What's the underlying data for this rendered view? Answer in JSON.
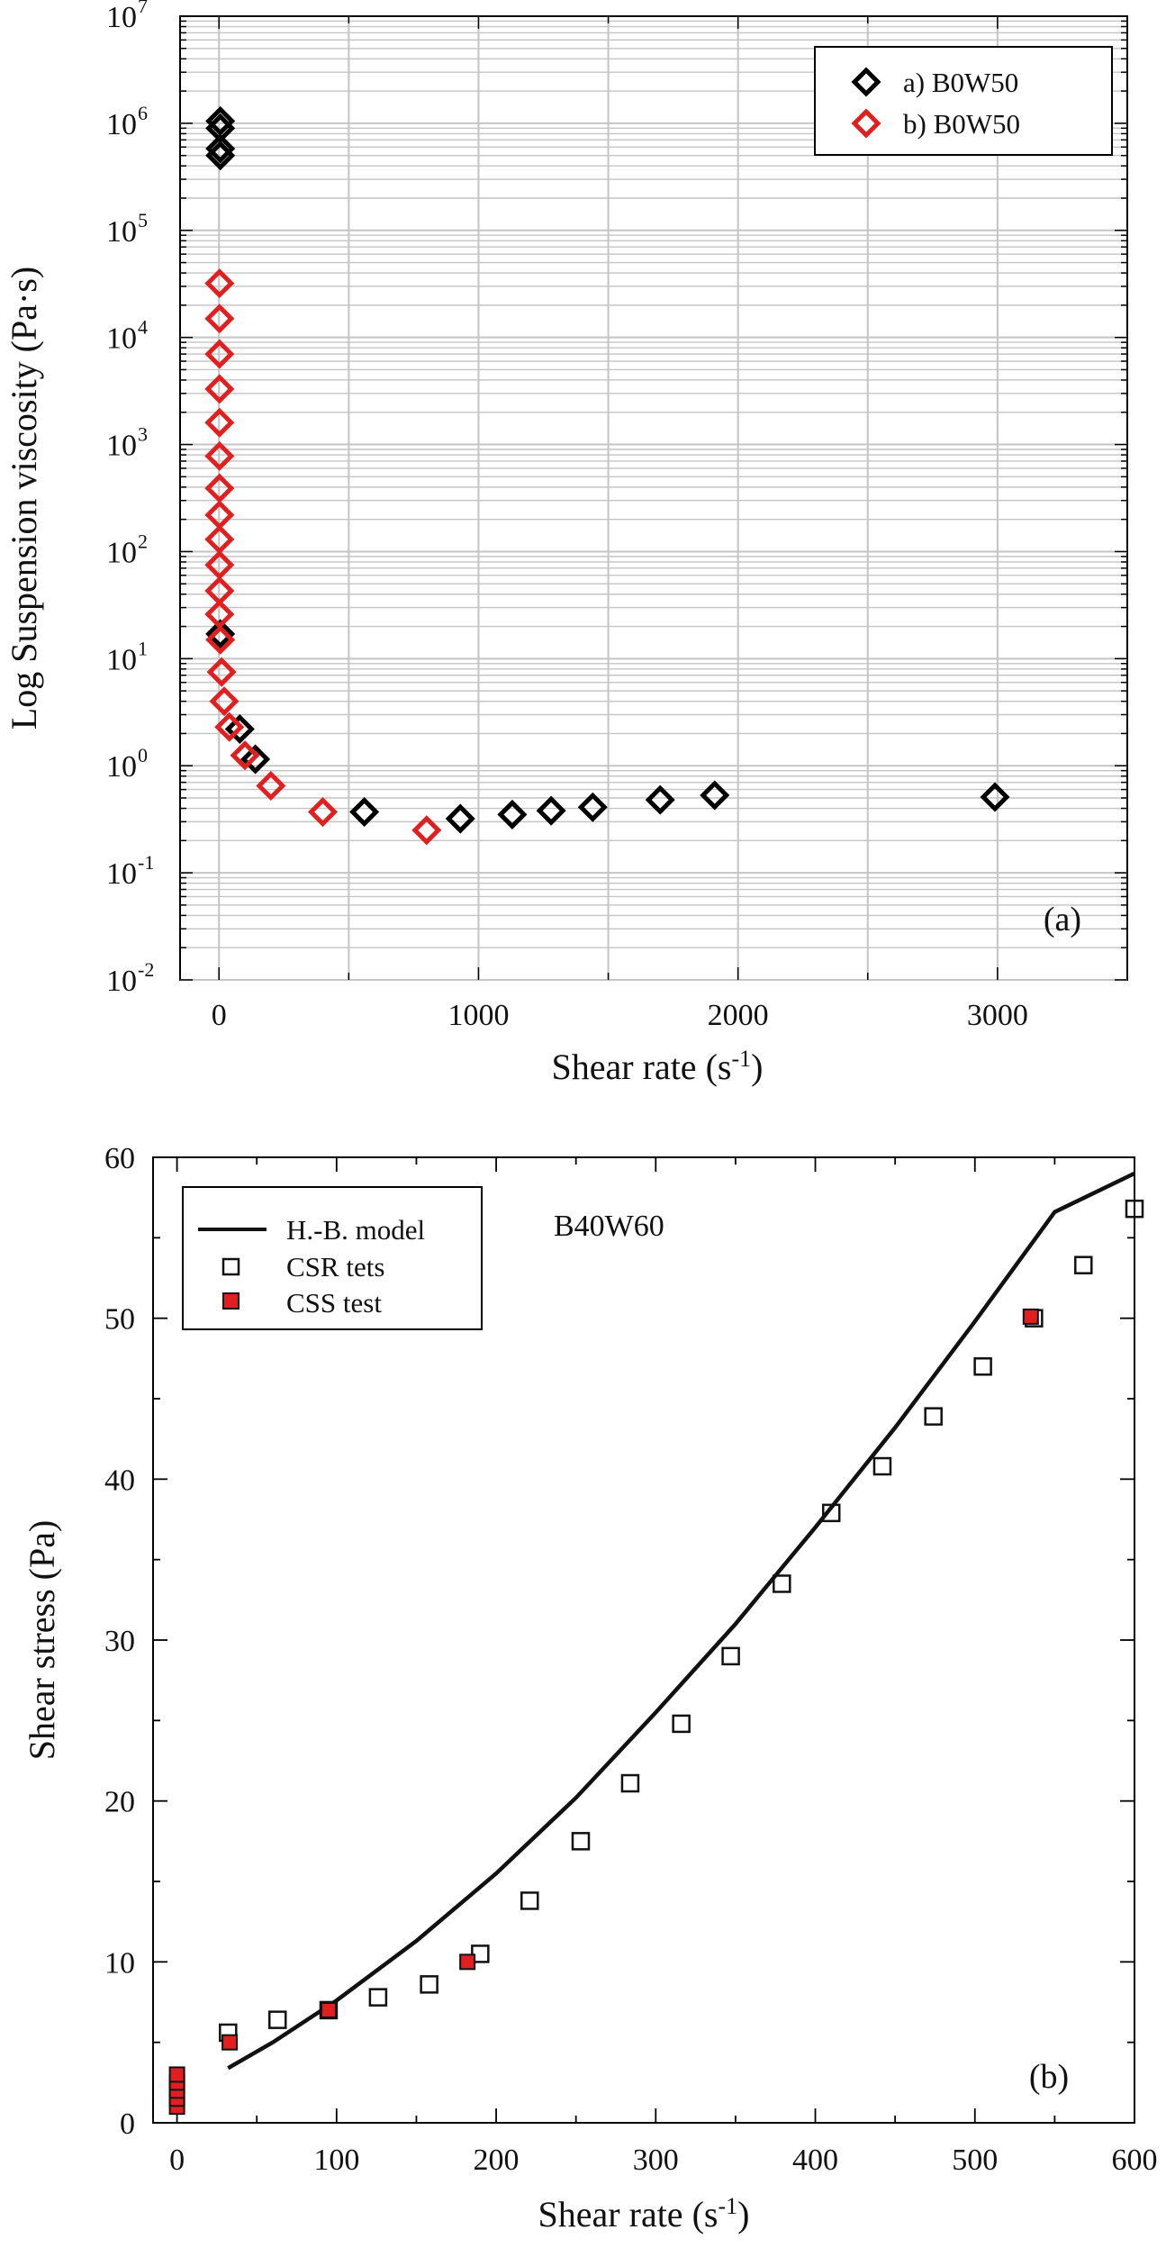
{
  "chart_data": [
    {
      "type": "scatter",
      "panel_label": "(a)",
      "xlabel": "Shear rate (s",
      "xlabel_sup": "-1",
      "xlabel_end": ")",
      "ylabel": "Log Suspension viscosity (Pa·s)",
      "y_scale": "log",
      "xlim": [
        -150,
        3500
      ],
      "ylim": [
        0.01,
        10000000
      ],
      "x_ticks": [
        0,
        1000,
        2000,
        3000
      ],
      "x_tick_labels": [
        "0",
        "1000",
        "2000",
        "3000"
      ],
      "y_ticks": [
        0.01,
        0.1,
        1,
        10,
        100,
        1000,
        10000,
        100000,
        1000000,
        10000000
      ],
      "y_tick_labels": [
        {
          "base": "10",
          "exp": "-2"
        },
        {
          "base": "10",
          "exp": "-1"
        },
        {
          "base": "10",
          "exp": "0"
        },
        {
          "base": "10",
          "exp": "1"
        },
        {
          "base": "10",
          "exp": "2"
        },
        {
          "base": "10",
          "exp": "3"
        },
        {
          "base": "10",
          "exp": "4"
        },
        {
          "base": "10",
          "exp": "5"
        },
        {
          "base": "10",
          "exp": "6"
        },
        {
          "base": "10",
          "exp": "7"
        }
      ],
      "grid": true,
      "legend_position": "top-right",
      "series": [
        {
          "name": "a) B0W50",
          "color": "#000000",
          "marker": "diamond-open",
          "points": [
            [
              5,
              1050000
            ],
            [
              5,
              900000
            ],
            [
              5,
              580000
            ],
            [
              5,
              500000
            ],
            [
              5,
              17
            ],
            [
              80,
              2.2
            ],
            [
              140,
              1.15
            ],
            [
              560,
              0.37
            ],
            [
              930,
              0.32
            ],
            [
              1130,
              0.35
            ],
            [
              1280,
              0.38
            ],
            [
              1440,
              0.41
            ],
            [
              1700,
              0.48
            ],
            [
              1910,
              0.53
            ],
            [
              2990,
              0.51
            ]
          ]
        },
        {
          "name": "b) B0W50",
          "color": "#e02020",
          "marker": "diamond-open",
          "points": [
            [
              2,
              32000
            ],
            [
              2,
              15000
            ],
            [
              2,
              7000
            ],
            [
              2,
              3300
            ],
            [
              2,
              1600
            ],
            [
              2,
              780
            ],
            [
              2,
              390
            ],
            [
              2,
              220
            ],
            [
              2,
              130
            ],
            [
              2,
              75
            ],
            [
              2,
              43
            ],
            [
              2,
              26
            ],
            [
              5,
              15
            ],
            [
              10,
              7.5
            ],
            [
              20,
              4
            ],
            [
              40,
              2.3
            ],
            [
              100,
              1.25
            ],
            [
              200,
              0.65
            ],
            [
              400,
              0.37
            ],
            [
              800,
              0.25
            ]
          ]
        }
      ]
    },
    {
      "type": "scatter",
      "panel_label": "(b)",
      "annotation": "B40W60",
      "xlabel": "Shear rate (s",
      "xlabel_sup": "-1",
      "xlabel_end": ")",
      "ylabel": "Shear stress (Pa)",
      "xlim": [
        -15,
        600
      ],
      "ylim": [
        0,
        60
      ],
      "x_ticks": [
        0,
        100,
        200,
        300,
        400,
        500,
        600
      ],
      "x_tick_labels": [
        "0",
        "100",
        "200",
        "300",
        "400",
        "500",
        "600"
      ],
      "y_ticks": [
        0,
        10,
        20,
        30,
        40,
        50,
        60
      ],
      "y_tick_labels": [
        "0",
        "10",
        "20",
        "30",
        "40",
        "50",
        "60"
      ],
      "grid": false,
      "legend_position": "top-left",
      "series": [
        {
          "name": "H.-B. model",
          "type": "line",
          "color": "#111111",
          "points": [
            [
              32,
              3.4
            ],
            [
              60,
              5.0
            ],
            [
              100,
              7.6
            ],
            [
              150,
              11.3
            ],
            [
              200,
              15.5
            ],
            [
              250,
              20.2
            ],
            [
              300,
              25.5
            ],
            [
              350,
              31.0
            ],
            [
              400,
              37.0
            ],
            [
              450,
              43.2
            ],
            [
              500,
              49.8
            ],
            [
              550,
              56.6
            ],
            [
              600,
              59
            ]
          ]
        },
        {
          "name": "CSR tets",
          "marker": "square-open",
          "color": "#111111",
          "points": [
            [
              32,
              5.6
            ],
            [
              63,
              6.4
            ],
            [
              95,
              7.0
            ],
            [
              126,
              7.8
            ],
            [
              158,
              8.6
            ],
            [
              190,
              10.5
            ],
            [
              221,
              13.8
            ],
            [
              253,
              17.5
            ],
            [
              284,
              21.1
            ],
            [
              316,
              24.8
            ],
            [
              347,
              29.0
            ],
            [
              379,
              33.5
            ],
            [
              410,
              37.9
            ],
            [
              442,
              40.8
            ],
            [
              474,
              43.9
            ],
            [
              505,
              47.0
            ],
            [
              537,
              50.0
            ],
            [
              568,
              53.3
            ],
            [
              600,
              56.8
            ]
          ]
        },
        {
          "name": "CSS test",
          "marker": "square-filled",
          "color": "#e02020",
          "points": [
            [
              0,
              1.0
            ],
            [
              0,
              1.5
            ],
            [
              0,
              2.0
            ],
            [
              0,
              2.5
            ],
            [
              0,
              3.0
            ],
            [
              33,
              5.0
            ],
            [
              95,
              7.0
            ],
            [
              182,
              10.0
            ],
            [
              535,
              50.1
            ]
          ]
        }
      ]
    }
  ]
}
